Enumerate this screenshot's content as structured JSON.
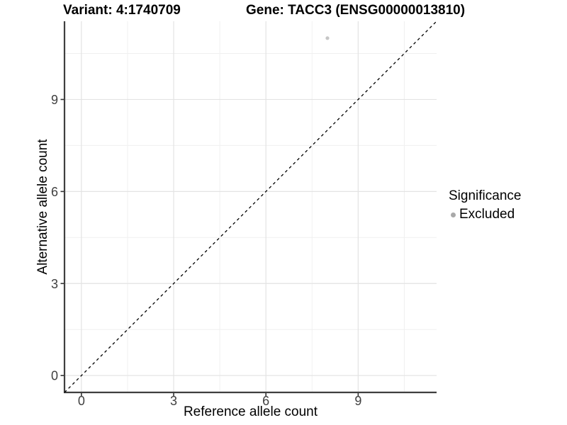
{
  "header": {
    "variant_title": "Variant: 4:1740709",
    "gene_title": "Gene: TACC3 (ENSG00000013810)"
  },
  "chart_data": {
    "type": "scatter",
    "xlabel": "Reference allele count",
    "ylabel": "Alternative allele count",
    "xlim": [
      -0.55,
      11.55
    ],
    "ylim": [
      -0.55,
      11.55
    ],
    "xticks": [
      0,
      3,
      6,
      9
    ],
    "yticks": [
      0,
      3,
      6,
      9
    ],
    "minor_ticks": [
      1.5,
      4.5,
      7.5,
      10.5
    ],
    "grid": true,
    "points": [
      {
        "x": 8,
        "y": 11,
        "series": "Excluded"
      }
    ],
    "identity_line": {
      "style": "dashed",
      "label": "y = x",
      "x0": -0.55,
      "y0": -0.55,
      "x1": 11.55,
      "y1": 11.55
    },
    "legend": {
      "title": "Significance",
      "position": "right",
      "items": [
        {
          "label": "Excluded",
          "color": "#a9a9a9"
        }
      ]
    },
    "colors": {
      "point": "#c6c6c6",
      "grid_major": "#e3e3e3",
      "grid_minor": "#f0f0f0",
      "axis_line": "#3f3f3f",
      "tick_mark": "#333333",
      "reference_line": "#000000"
    }
  }
}
